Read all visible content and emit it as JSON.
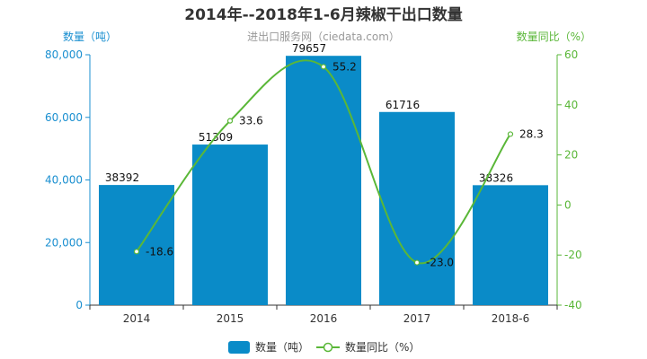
{
  "chart_data": {
    "type": "bar",
    "title": "2014年--2018年1-6月辣椒干出口数量",
    "watermark": "进出口服务网（ciedata.com）",
    "categories": [
      "2014",
      "2015",
      "2016",
      "2017",
      "2018-6"
    ],
    "y_left": {
      "label": "数量（吨）",
      "ylim": [
        0,
        80000
      ],
      "ticks": [
        0,
        20000,
        40000,
        60000,
        80000
      ],
      "tick_labels": [
        "0",
        "20,000",
        "40,000",
        "60,000",
        "80,000"
      ],
      "color": "#1a8fd0"
    },
    "y_right": {
      "label": "数量同比（%）",
      "ylim": [
        -40,
        60
      ],
      "ticks": [
        -40,
        -20,
        0,
        20,
        40,
        60
      ],
      "tick_labels": [
        "-40",
        "-20",
        "0",
        "20",
        "40",
        "60"
      ],
      "color": "#5ab738"
    },
    "series": [
      {
        "name": "数量（吨）",
        "type": "bar",
        "axis": "left",
        "color": "#0a8bc8",
        "values": [
          38392,
          51309,
          79657,
          61716,
          38326
        ],
        "labels": [
          "38392",
          "51309",
          "79657",
          "61716",
          "38326"
        ]
      },
      {
        "name": "数量同比（%）",
        "type": "line",
        "smooth": true,
        "axis": "right",
        "color": "#5ab738",
        "values": [
          -18.6,
          33.6,
          55.2,
          -23.0,
          28.3
        ],
        "labels": [
          "-18.6",
          "33.6",
          "55.2",
          "-23.0",
          "28.3"
        ]
      }
    ],
    "legend": {
      "position": "bottom-center"
    },
    "grid": false
  }
}
